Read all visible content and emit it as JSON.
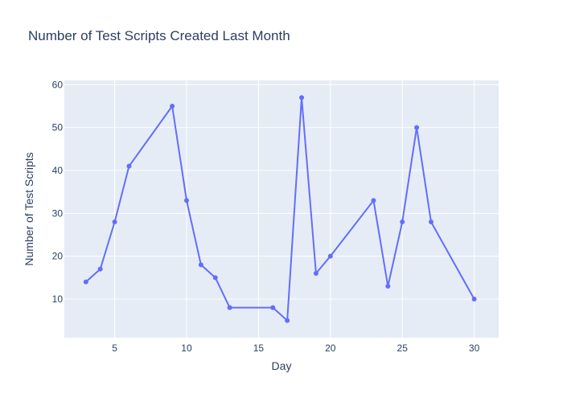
{
  "chart_data": {
    "type": "line",
    "title": "Number of Test Scripts Created Last Month",
    "xlabel": "Day",
    "ylabel": "Number of Test Scripts",
    "xlim": [
      1.5,
      31.7
    ],
    "ylim": [
      1,
      61
    ],
    "x_ticks": [
      5,
      10,
      15,
      20,
      25,
      30
    ],
    "y_ticks": [
      10,
      20,
      30,
      40,
      50,
      60
    ],
    "grid": true,
    "legend": "none",
    "colors": {
      "series": "#636efa",
      "plot_bg": "#e5ecf6"
    },
    "series": [
      {
        "x": [
          3,
          4,
          5,
          6,
          9,
          10,
          11,
          12,
          13,
          16,
          17,
          18,
          19,
          20,
          23,
          24,
          25,
          26,
          27,
          30
        ],
        "y": [
          14,
          17,
          28,
          41,
          55,
          33,
          18,
          15,
          8,
          8,
          5,
          57,
          16,
          20,
          33,
          13,
          28,
          50,
          28,
          10
        ]
      }
    ]
  }
}
